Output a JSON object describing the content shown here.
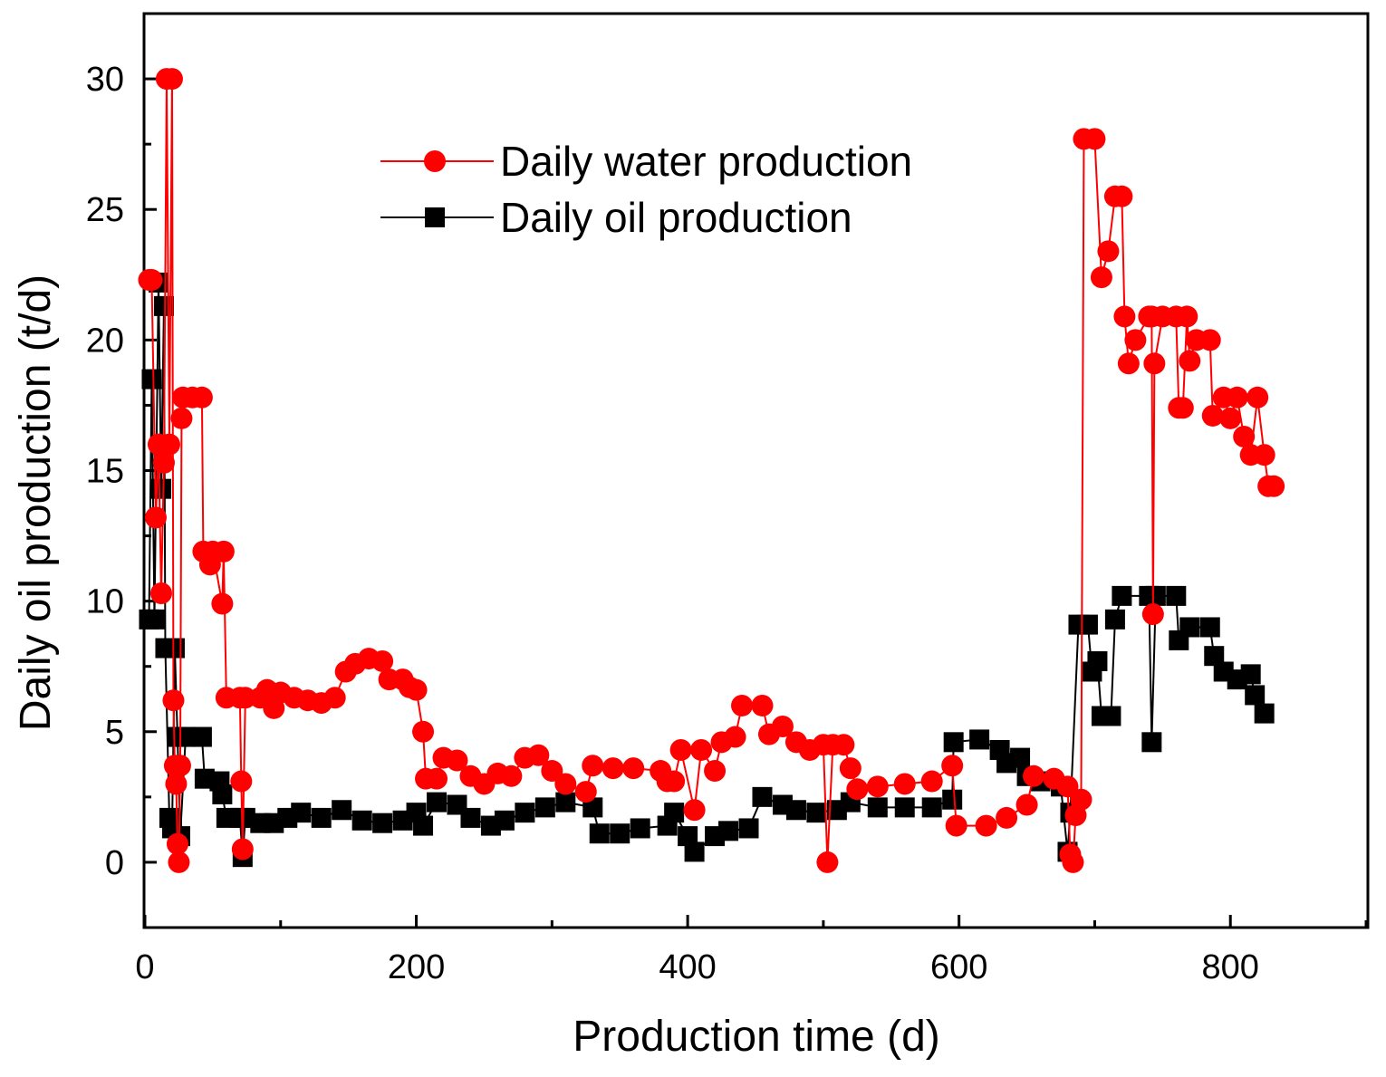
{
  "chart_data": {
    "type": "line",
    "xlabel": "Production time (d)",
    "ylabel": "Daily oil production (t/d)",
    "xlim": [
      0,
      900
    ],
    "ylim": [
      -2.5,
      32.5
    ],
    "xticks": [
      0,
      200,
      400,
      600,
      800
    ],
    "yticks": [
      0,
      5,
      10,
      15,
      20,
      25,
      30
    ],
    "xminorticks": [
      100,
      300,
      500,
      700,
      900
    ],
    "yminorticks": [
      -2.5,
      2.5,
      7.5,
      12.5,
      17.5,
      22.5,
      27.5,
      32.5
    ],
    "legend": "upper center",
    "series": [
      {
        "name": "Daily water production",
        "color": "#ff0000",
        "marker": "circle",
        "x": [
          3,
          5,
          8,
          10,
          12,
          14,
          16,
          18,
          20,
          21,
          22,
          23,
          24,
          25,
          26,
          27,
          28,
          35,
          42,
          43,
          48,
          50,
          57,
          58,
          60,
          70,
          71,
          72,
          74,
          85,
          90,
          95,
          100,
          110,
          120,
          130,
          140,
          148,
          155,
          165,
          175,
          180,
          190,
          195,
          200,
          205,
          207,
          215,
          220,
          230,
          240,
          250,
          260,
          270,
          280,
          290,
          300,
          310,
          325,
          330,
          345,
          360,
          380,
          385,
          390,
          395,
          405,
          410,
          420,
          425,
          435,
          440,
          455,
          460,
          470,
          480,
          490,
          500,
          503,
          507,
          515,
          520,
          525,
          540,
          560,
          580,
          595,
          598,
          620,
          635,
          650,
          655,
          670,
          680,
          682,
          684,
          686,
          690,
          692,
          700,
          705,
          710,
          715,
          720,
          722,
          725,
          730,
          740,
          742,
          743,
          744,
          750,
          760,
          762,
          765,
          768,
          770,
          775,
          785,
          787,
          795,
          800,
          805,
          810,
          815,
          820,
          825,
          828,
          832
        ],
        "values": [
          22.3,
          22.3,
          13.2,
          16,
          10.3,
          15.3,
          30,
          16,
          30,
          6.2,
          3.7,
          3,
          0.7,
          0,
          3.7,
          17,
          17.8,
          17.8,
          17.8,
          11.9,
          11.4,
          11.9,
          9.9,
          11.9,
          6.3,
          6.3,
          3.1,
          0.5,
          6.3,
          6.3,
          6.6,
          5.9,
          6.5,
          6.3,
          6.2,
          6.1,
          6.3,
          7.3,
          7.6,
          7.8,
          7.7,
          7,
          7,
          6.7,
          6.6,
          5,
          3.2,
          3.2,
          4,
          3.9,
          3.3,
          3,
          3.4,
          3.3,
          4,
          4.1,
          3.5,
          3,
          2.7,
          3.7,
          3.6,
          3.6,
          3.5,
          3.1,
          3.1,
          4.3,
          2,
          4.3,
          3.5,
          4.6,
          4.8,
          6,
          6,
          4.9,
          5.2,
          4.6,
          4.3,
          4.5,
          0,
          4.5,
          4.5,
          3.6,
          2.8,
          2.9,
          3,
          3.1,
          3.7,
          1.4,
          1.4,
          1.7,
          2.2,
          3.3,
          3.2,
          2.9,
          0.3,
          0,
          1.8,
          2.4,
          27.7,
          27.7,
          22.4,
          23.4,
          25.5,
          25.5,
          20.9,
          19.1,
          20,
          20.9,
          20.9,
          9.5,
          19.1,
          20.9,
          20.9,
          17.4,
          17.4,
          20.9,
          19.2,
          20,
          20,
          17.1,
          17.8,
          17,
          17.8,
          16.3,
          15.6,
          17.8,
          15.6,
          14.4,
          14.4
        ]
      },
      {
        "name": "Daily oil production",
        "color": "#000000",
        "marker": "square",
        "x": [
          3,
          5,
          7,
          10,
          12,
          14,
          15,
          18,
          20,
          22,
          24,
          26,
          30,
          42,
          44,
          55,
          57,
          60,
          70,
          72,
          74,
          85,
          95,
          105,
          115,
          130,
          145,
          160,
          175,
          190,
          200,
          205,
          215,
          230,
          240,
          255,
          265,
          280,
          295,
          310,
          330,
          335,
          350,
          365,
          385,
          390,
          400,
          405,
          420,
          430,
          445,
          455,
          470,
          480,
          495,
          510,
          520,
          540,
          560,
          580,
          595,
          596,
          615,
          630,
          635,
          645,
          650,
          660,
          675,
          680,
          682,
          688,
          695,
          698,
          702,
          705,
          712,
          715,
          720,
          740,
          742,
          745,
          760,
          762,
          770,
          785,
          788,
          795,
          805,
          815,
          818,
          825
        ],
        "values": [
          9.3,
          18.5,
          9.3,
          22.2,
          14.3,
          21.3,
          8.2,
          1.7,
          1.3,
          8.2,
          4.8,
          1,
          4.8,
          4.8,
          3.2,
          3.1,
          2.6,
          1.7,
          1.7,
          0.2,
          1.7,
          1.5,
          1.5,
          1.7,
          1.9,
          1.7,
          2,
          1.6,
          1.5,
          1.6,
          1.9,
          1.4,
          2.3,
          2.2,
          1.7,
          1.4,
          1.6,
          1.9,
          2.1,
          2.3,
          2.1,
          1.1,
          1.1,
          1.3,
          1.4,
          1.9,
          1,
          0.4,
          1,
          1.2,
          1.3,
          2.5,
          2.2,
          2,
          1.9,
          2,
          2.3,
          2.1,
          2.1,
          2.1,
          2.4,
          4.6,
          4.7,
          4.3,
          3.8,
          4,
          3.3,
          3.1,
          2.9,
          0.4,
          1.9,
          9.1,
          9.1,
          7.3,
          7.7,
          5.6,
          5.6,
          9.3,
          10.2,
          10.2,
          4.6,
          10.2,
          10.2,
          8.5,
          9,
          9,
          7.9,
          7.3,
          7,
          7.2,
          6.4,
          5.7
        ]
      }
    ]
  }
}
